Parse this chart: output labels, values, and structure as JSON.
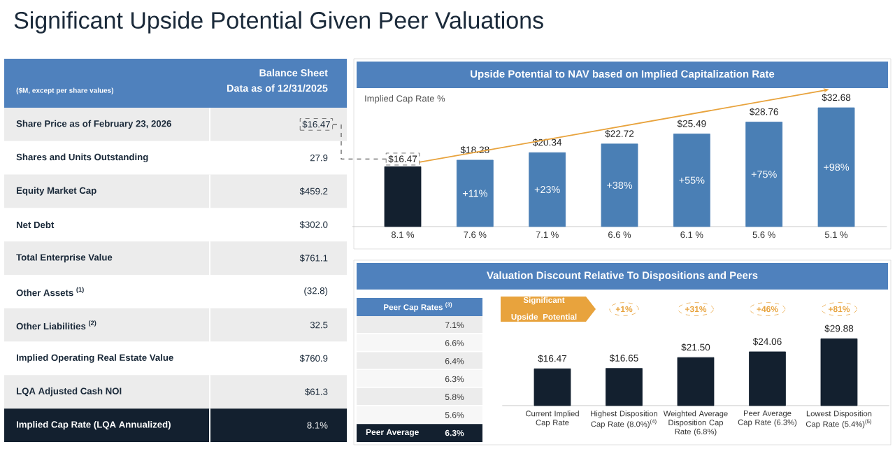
{
  "chart_data": [
    {
      "type": "other",
      "title": "Significant Upside Potential Given Peer Valuations",
      "annotations": [
        "($M, except per share values)",
        "Balance Sheet",
        "Data as of 12/31/2025",
        "Share Price as of February 23, 2026",
        "$16.47",
        "Shares and Units Outstanding",
        "27.9",
        "Equity Market Cap",
        "$459.2",
        "Net Debt",
        "$302.0",
        "Total Enterprise Value",
        "$761.1",
        "Other Assets $^{(1)}$",
        "(32.8)",
        "Other Liabilities $^{(2)}$",
        "32.5",
        "Implied Operating Real Estate Value",
        "$760.9",
        "LQA Adjusted Cash NOI",
        "$61.3",
        "Implied Cap Rate (LQA Annualized)",
        "8.1%"
      ]
    },
    {
      "type": "bar",
      "title": "Upside Potential to NAV based on Implied Capitalization Rate",
      "xlabel": "Implied Cap Rate %",
      "categories": [
        "8.1 %",
        "7.6 %",
        "7.1 %",
        "6.6 %",
        "6.1 %",
        "5.6 %",
        "5.1 %"
      ],
      "values": [
        16.47,
        18.28,
        20.34,
        22.72,
        25.49,
        28.76,
        32.68
      ],
      "value_labels": [
        "$16.47",
        "$18.28",
        "$20.34",
        "$22.72",
        "$25.49",
        "$28.76",
        "$32.68"
      ],
      "colors": [
        "#13202f",
        "#4a7fb5",
        "#4a7fb5",
        "#4a7fb5",
        "#4a7fb5",
        "#4a7fb5",
        "#4a7fb5"
      ],
      "annotations": [
        "+11%",
        "+23%",
        "+38%",
        "+55%",
        "+75%",
        "+98%"
      ]
    },
    {
      "type": "bar",
      "title": "Valuation Discount Relative To Dispositions and Peers",
      "categories": [
        "Current Implied Cap Rate",
        "Highest Disposition Cap Rate (8.0%)$^{(4)}$",
        "Weighted Average Disposition Cap Rate (6.8%)",
        "Peer Average Cap Rate (6.3%)",
        "Lowest Disposition Cap Rate (5.4%)$^{(5)}$"
      ],
      "values": [
        16.47,
        16.65,
        21.5,
        24.06,
        29.88
      ],
      "value_labels": [
        "$16.47",
        "$16.65",
        "$21.50",
        "$24.06",
        "$29.88"
      ],
      "color": "#13202f",
      "annotations": [
        "Significant Upside Potential",
        "+1%",
        "+31%",
        "+46%",
        "+81%",
        "Peer Cap Rates $^{(3)}$",
        "7.1%",
        "6.6%",
        "6.4%",
        "6.3%",
        "5.8%",
        "5.6%",
        "Peer Average",
        "6.3%"
      ]
    }
  ]
}
